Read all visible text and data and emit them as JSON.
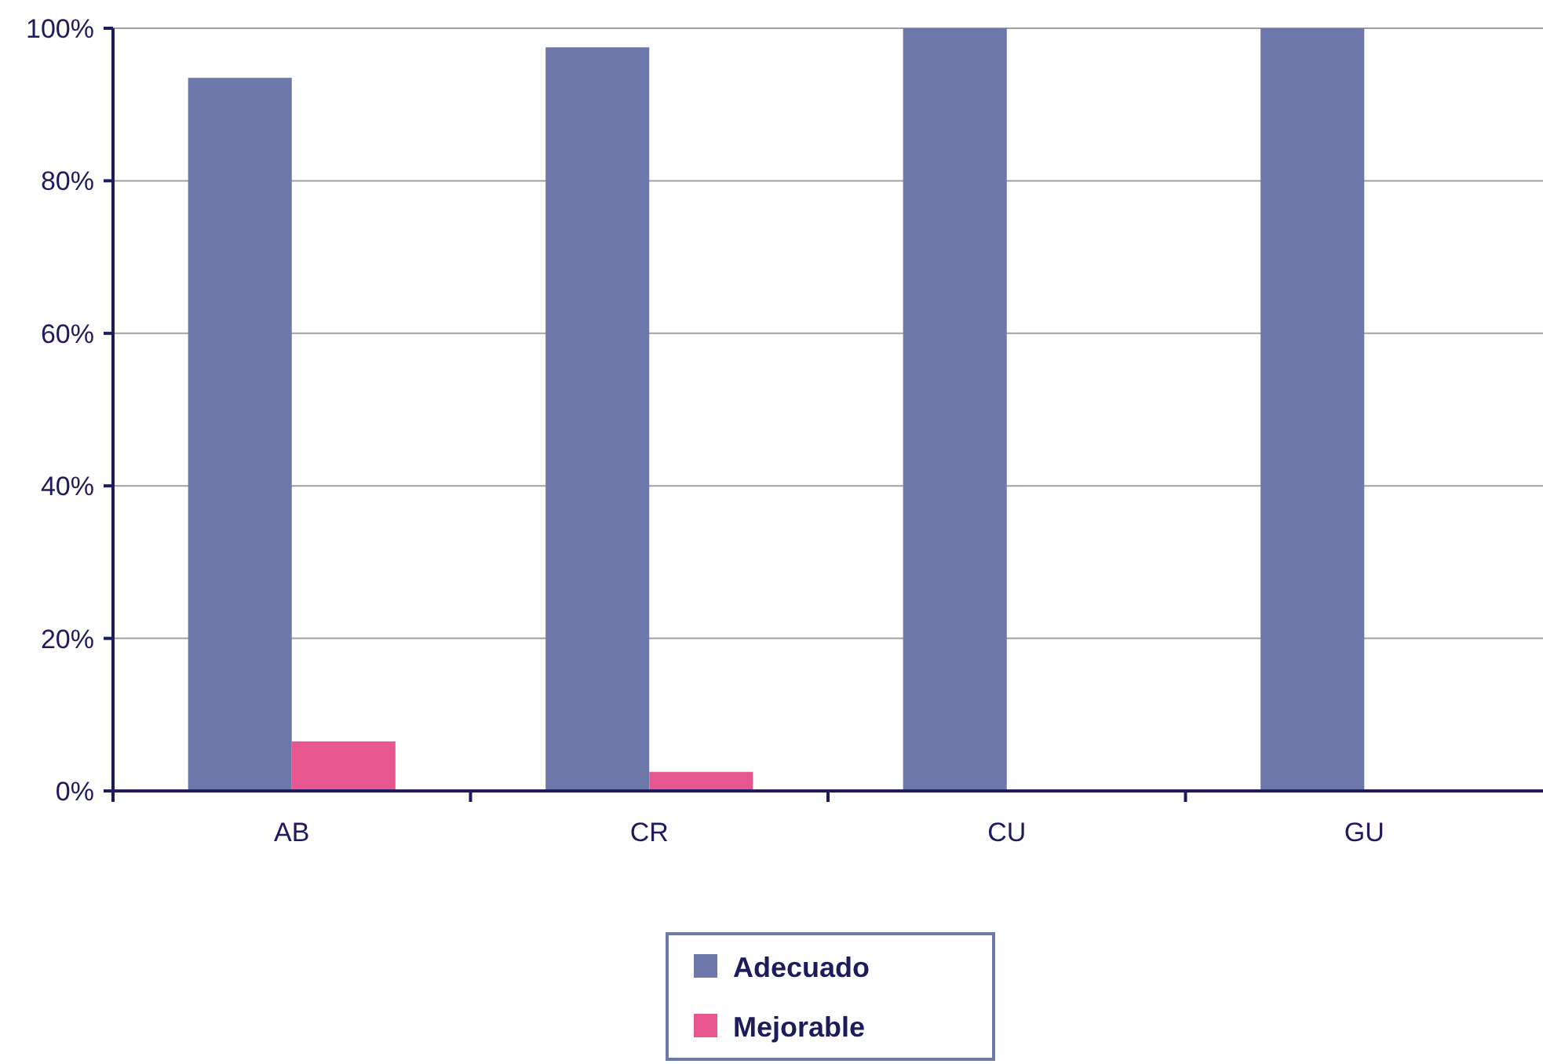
{
  "chart_data": {
    "type": "bar",
    "categories": [
      "AB",
      "CR",
      "CU",
      "GU"
    ],
    "series": [
      {
        "name": "Adecuado",
        "color": "#6e77aa",
        "values": [
          93.5,
          97.5,
          100,
          100
        ]
      },
      {
        "name": "Mejorable",
        "color": "#e8568f",
        "values": [
          6.5,
          2.5,
          0,
          0
        ]
      }
    ],
    "ylim": [
      0,
      100
    ],
    "yticks": [
      {
        "value": 0,
        "label": "0%"
      },
      {
        "value": 20,
        "label": "20%"
      },
      {
        "value": 40,
        "label": "40%"
      },
      {
        "value": 60,
        "label": "60%"
      },
      {
        "value": 80,
        "label": "80%"
      },
      {
        "value": 100,
        "label": "100%"
      }
    ],
    "grid": "y",
    "legend": "bottom"
  }
}
